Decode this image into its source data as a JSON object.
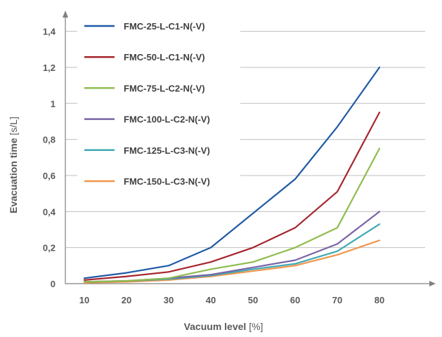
{
  "chart_data": {
    "type": "line",
    "x": [
      10,
      20,
      30,
      40,
      50,
      60,
      70,
      80
    ],
    "xlabel": "Vacuum level",
    "xunit": "[%]",
    "ylabel": "Evacuation time",
    "yunit": "[s/L]",
    "ylim": [
      0,
      1.5
    ],
    "yticks": [
      "0",
      "0,2",
      "0,4",
      "0,6",
      "0,8",
      "1",
      "1,2",
      "1,4"
    ],
    "xticks": [
      "10",
      "20",
      "30",
      "40",
      "50",
      "60",
      "70",
      "80"
    ],
    "grid": "horizontal",
    "legend_position": "top-left",
    "series": [
      {
        "name": "FMC-25-L-C1-N(-V)",
        "color": "#1f5aa6",
        "values": [
          0.03,
          0.06,
          0.1,
          0.2,
          0.39,
          0.58,
          0.87,
          1.2
        ]
      },
      {
        "name": "FMC-50-L-C1-N(-V)",
        "color": "#a6262f",
        "values": [
          0.02,
          0.04,
          0.065,
          0.12,
          0.2,
          0.31,
          0.51,
          0.95
        ]
      },
      {
        "name": "FMC-75-L-C2-N(-V)",
        "color": "#8fbc4e",
        "values": [
          0.01,
          0.015,
          0.03,
          0.08,
          0.12,
          0.2,
          0.31,
          0.75
        ]
      },
      {
        "name": "FMC-100-L-C2-N(-V)",
        "color": "#7a64a6",
        "values": [
          0.01,
          0.015,
          0.03,
          0.05,
          0.09,
          0.13,
          0.22,
          0.4
        ]
      },
      {
        "name": "FMC-125-L-C3-N(-V)",
        "color": "#3fa9b5",
        "values": [
          0.01,
          0.015,
          0.025,
          0.045,
          0.08,
          0.11,
          0.18,
          0.33
        ]
      },
      {
        "name": "FMC-150-L-C3-N(-V)",
        "color": "#f0954a",
        "values": [
          0.005,
          0.01,
          0.02,
          0.04,
          0.07,
          0.1,
          0.16,
          0.24
        ]
      }
    ],
    "colors": {
      "axis": "#808080",
      "grid": "#bfbfbf",
      "text": "#595959"
    }
  }
}
